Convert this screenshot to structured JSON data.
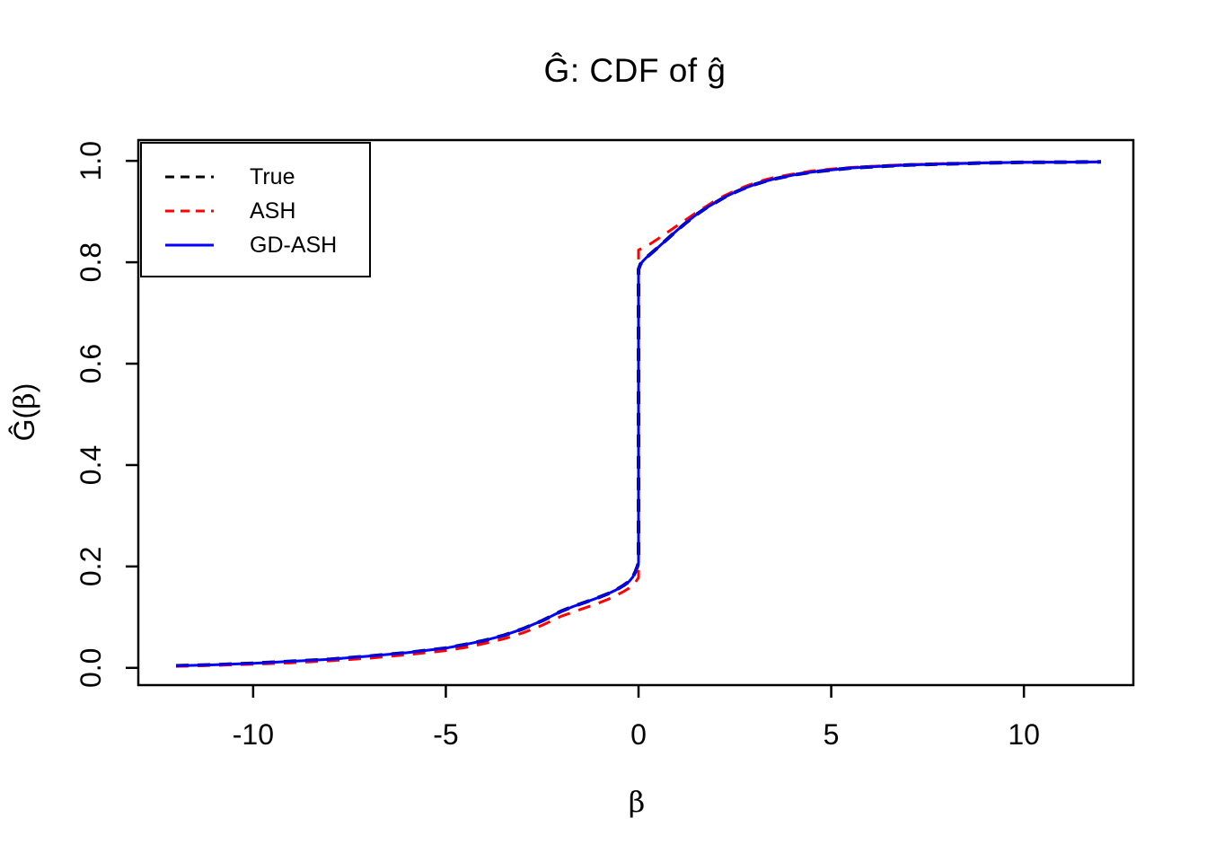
{
  "chart_data": {
    "type": "line",
    "title": "Ĝ: CDF of ĝ",
    "xlabel": "β",
    "ylabel": "Ĝ(β)",
    "ylabel_parts": {
      "pre": "Ĝ(",
      "sym": "β",
      "post": ")"
    },
    "xlim": [
      -12.98,
      12.84
    ],
    "ylim": [
      -0.034,
      1.041
    ],
    "x_ticks": {
      "values": [
        -10,
        -5,
        0,
        5,
        10
      ],
      "labels": [
        "-10",
        "-5",
        "0",
        "5",
        "10"
      ]
    },
    "y_ticks": {
      "values": [
        0.0,
        0.2,
        0.4,
        0.6,
        0.8,
        1.0
      ],
      "labels": [
        "0.0",
        "0.2",
        "0.4",
        "0.6",
        "0.8",
        "1.0"
      ]
    },
    "grid": false,
    "background": "#ffffff",
    "axis_color": "#000000",
    "legend": {
      "position": "topleft",
      "border": true
    },
    "series": [
      {
        "name": "True",
        "color": "#000000",
        "dash": true,
        "points": [
          [
            -12,
            0.004
          ],
          [
            -11,
            0.006
          ],
          [
            -10,
            0.009
          ],
          [
            -9,
            0.013
          ],
          [
            -8,
            0.017
          ],
          [
            -7,
            0.023
          ],
          [
            -6,
            0.03
          ],
          [
            -5,
            0.039
          ],
          [
            -4.5,
            0.046
          ],
          [
            -4,
            0.054
          ],
          [
            -3.5,
            0.064
          ],
          [
            -3,
            0.077
          ],
          [
            -2.5,
            0.093
          ],
          [
            -2,
            0.112
          ],
          [
            -1.7,
            0.121
          ],
          [
            -1.4,
            0.129
          ],
          [
            -1.1,
            0.137
          ],
          [
            -0.8,
            0.146
          ],
          [
            -0.6,
            0.153
          ],
          [
            -0.4,
            0.162
          ],
          [
            -0.25,
            0.17
          ],
          [
            -0.15,
            0.179
          ],
          [
            -0.08,
            0.19
          ],
          [
            -0.03,
            0.2
          ],
          [
            0,
            0.207
          ],
          [
            0,
            0.786
          ],
          [
            0.05,
            0.796
          ],
          [
            0.12,
            0.803
          ],
          [
            0.2,
            0.809
          ],
          [
            0.35,
            0.819
          ],
          [
            0.5,
            0.829
          ],
          [
            0.75,
            0.846
          ],
          [
            1,
            0.863
          ],
          [
            1.25,
            0.879
          ],
          [
            1.5,
            0.894
          ],
          [
            1.75,
            0.907
          ],
          [
            2,
            0.918
          ],
          [
            2.25,
            0.929
          ],
          [
            2.5,
            0.938
          ],
          [
            2.75,
            0.946
          ],
          [
            3,
            0.953
          ],
          [
            3.25,
            0.959
          ],
          [
            3.5,
            0.964
          ],
          [
            4,
            0.972
          ],
          [
            4.5,
            0.978
          ],
          [
            5,
            0.982
          ],
          [
            5.5,
            0.986
          ],
          [
            6,
            0.988
          ],
          [
            6.5,
            0.99
          ],
          [
            7,
            0.992
          ],
          [
            7.5,
            0.993
          ],
          [
            8,
            0.994
          ],
          [
            8.5,
            0.995
          ],
          [
            9,
            0.996
          ],
          [
            10,
            0.997
          ],
          [
            11,
            0.9975
          ],
          [
            12,
            0.998
          ]
        ]
      },
      {
        "name": "ASH",
        "color": "#FF0000",
        "dash": true,
        "points": [
          [
            -12,
            0.003
          ],
          [
            -11,
            0.005
          ],
          [
            -10,
            0.007
          ],
          [
            -9,
            0.01
          ],
          [
            -8,
            0.014
          ],
          [
            -7,
            0.019
          ],
          [
            -6,
            0.026
          ],
          [
            -5,
            0.034
          ],
          [
            -4.5,
            0.04
          ],
          [
            -4,
            0.048
          ],
          [
            -3.5,
            0.057
          ],
          [
            -3,
            0.069
          ],
          [
            -2.5,
            0.084
          ],
          [
            -2,
            0.102
          ],
          [
            -1.7,
            0.11
          ],
          [
            -1.4,
            0.118
          ],
          [
            -1.1,
            0.126
          ],
          [
            -0.8,
            0.135
          ],
          [
            -0.6,
            0.142
          ],
          [
            -0.4,
            0.15
          ],
          [
            -0.25,
            0.157
          ],
          [
            -0.15,
            0.163
          ],
          [
            -0.08,
            0.169
          ],
          [
            0,
            0.178
          ],
          [
            0,
            0.824
          ],
          [
            0.15,
            0.83
          ],
          [
            0.3,
            0.836
          ],
          [
            0.5,
            0.846
          ],
          [
            0.75,
            0.859
          ],
          [
            1,
            0.872
          ],
          [
            1.25,
            0.885
          ],
          [
            1.5,
            0.898
          ],
          [
            1.75,
            0.91
          ],
          [
            2,
            0.922
          ],
          [
            2.25,
            0.932
          ],
          [
            2.5,
            0.941
          ],
          [
            2.75,
            0.949
          ],
          [
            3,
            0.956
          ],
          [
            3.25,
            0.962
          ],
          [
            3.5,
            0.967
          ],
          [
            4,
            0.974
          ],
          [
            4.5,
            0.98
          ],
          [
            5,
            0.984
          ],
          [
            5.5,
            0.987
          ],
          [
            6,
            0.989
          ],
          [
            6.5,
            0.991
          ],
          [
            7,
            0.9925
          ],
          [
            7.5,
            0.9937
          ],
          [
            8,
            0.9947
          ],
          [
            8.5,
            0.9955
          ],
          [
            9,
            0.9962
          ],
          [
            10,
            0.997
          ],
          [
            11,
            0.9975
          ],
          [
            12,
            0.998
          ]
        ]
      },
      {
        "name": "GD-ASH",
        "color": "#0000FF",
        "dash": false,
        "points": [
          [
            -12,
            0.004
          ],
          [
            -11,
            0.006
          ],
          [
            -10,
            0.009
          ],
          [
            -9,
            0.013
          ],
          [
            -8,
            0.017
          ],
          [
            -7,
            0.023
          ],
          [
            -6,
            0.03
          ],
          [
            -5,
            0.039
          ],
          [
            -4.5,
            0.046
          ],
          [
            -4,
            0.054
          ],
          [
            -3.5,
            0.064
          ],
          [
            -3,
            0.077
          ],
          [
            -2.5,
            0.093
          ],
          [
            -2,
            0.112
          ],
          [
            -1.7,
            0.121
          ],
          [
            -1.4,
            0.129
          ],
          [
            -1.1,
            0.137
          ],
          [
            -0.8,
            0.146
          ],
          [
            -0.6,
            0.153
          ],
          [
            -0.4,
            0.162
          ],
          [
            -0.25,
            0.17
          ],
          [
            -0.15,
            0.179
          ],
          [
            -0.08,
            0.19
          ],
          [
            -0.03,
            0.2
          ],
          [
            0,
            0.207
          ],
          [
            0,
            0.786
          ],
          [
            0.05,
            0.796
          ],
          [
            0.12,
            0.803
          ],
          [
            0.2,
            0.809
          ],
          [
            0.35,
            0.819
          ],
          [
            0.5,
            0.829
          ],
          [
            0.75,
            0.846
          ],
          [
            1,
            0.863
          ],
          [
            1.25,
            0.879
          ],
          [
            1.5,
            0.894
          ],
          [
            1.75,
            0.907
          ],
          [
            2,
            0.918
          ],
          [
            2.25,
            0.929
          ],
          [
            2.5,
            0.938
          ],
          [
            2.75,
            0.946
          ],
          [
            3,
            0.953
          ],
          [
            3.25,
            0.959
          ],
          [
            3.5,
            0.964
          ],
          [
            4,
            0.972
          ],
          [
            4.5,
            0.978
          ],
          [
            5,
            0.982
          ],
          [
            5.5,
            0.986
          ],
          [
            6,
            0.988
          ],
          [
            6.5,
            0.99
          ],
          [
            7,
            0.992
          ],
          [
            7.5,
            0.993
          ],
          [
            8,
            0.994
          ],
          [
            8.5,
            0.995
          ],
          [
            9,
            0.996
          ],
          [
            10,
            0.997
          ],
          [
            11,
            0.9975
          ],
          [
            12,
            0.998
          ]
        ]
      }
    ]
  }
}
